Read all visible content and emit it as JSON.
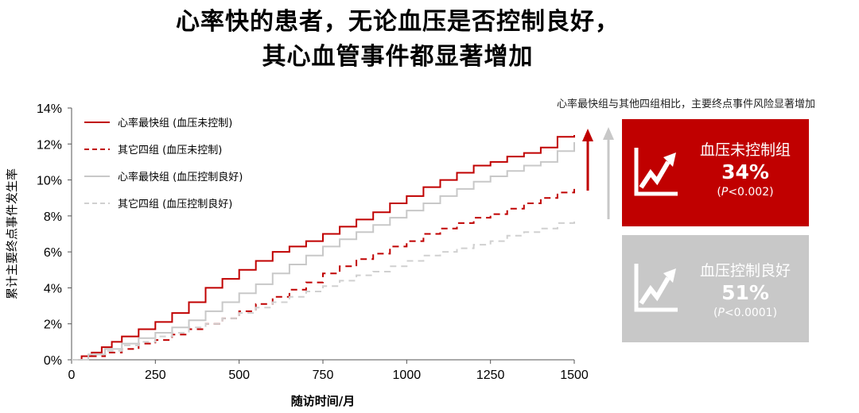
{
  "title": {
    "line1": "心率快的患者，无论血压是否控制良好，",
    "line2": "其心血管事件都显著增加"
  },
  "note": "心率最快组与其他四组相比，主要终点事件风险显著增加",
  "panels": [
    {
      "name": "血压未控制组",
      "percent": "34%",
      "p_prefix": "(",
      "p_italic": "P",
      "p_rest": "<0.002)",
      "color": "#c00000"
    },
    {
      "name": "血压控制良好",
      "percent": "51%",
      "p_prefix": "(",
      "p_italic": "P",
      "p_rest": "<0.0001)",
      "color": "#c8c8c8"
    }
  ],
  "colors": {
    "red": "#c00000",
    "gray": "#c8c8c8",
    "lightgray": "#d0d0d0"
  },
  "chart_data": {
    "type": "line",
    "title": "",
    "xlabel": "随访时间/月",
    "ylabel": "累计主要终点事件发生率",
    "xlim": [
      0,
      1500
    ],
    "ylim": [
      0,
      14
    ],
    "x_ticks": [
      0,
      250,
      500,
      750,
      1000,
      1250,
      1500
    ],
    "y_ticks": [
      0,
      2,
      4,
      6,
      8,
      10,
      12,
      14
    ],
    "y_tick_labels": [
      "0%",
      "2%",
      "4%",
      "6%",
      "8%",
      "10%",
      "12%",
      "14%"
    ],
    "legend_position": "top-left",
    "series": [
      {
        "name": "心率最快组 (血压未控制)",
        "color": "#c00000",
        "dash": "solid",
        "x": [
          0,
          30,
          60,
          90,
          120,
          150,
          200,
          250,
          300,
          350,
          400,
          450,
          500,
          550,
          600,
          650,
          700,
          750,
          800,
          850,
          900,
          950,
          1000,
          1050,
          1100,
          1150,
          1200,
          1250,
          1300,
          1350,
          1400,
          1450,
          1500
        ],
        "y": [
          0,
          0.2,
          0.4,
          0.7,
          1.0,
          1.3,
          1.7,
          2.1,
          2.6,
          3.2,
          4.0,
          4.5,
          5.0,
          5.5,
          6.0,
          6.3,
          6.6,
          7.0,
          7.4,
          7.8,
          8.2,
          8.7,
          9.1,
          9.6,
          10.0,
          10.4,
          10.8,
          11.0,
          11.3,
          11.5,
          11.8,
          12.4,
          12.5
        ]
      },
      {
        "name": "其它四组 (血压未控制)",
        "color": "#c00000",
        "dash": "dashed",
        "x": [
          0,
          50,
          100,
          150,
          200,
          250,
          300,
          350,
          400,
          450,
          500,
          550,
          600,
          650,
          700,
          750,
          800,
          850,
          900,
          950,
          1000,
          1050,
          1100,
          1150,
          1200,
          1250,
          1300,
          1350,
          1400,
          1450,
          1500
        ],
        "y": [
          0,
          0.2,
          0.4,
          0.6,
          0.9,
          1.1,
          1.4,
          1.7,
          2.0,
          2.3,
          2.7,
          3.1,
          3.5,
          3.9,
          4.3,
          4.8,
          5.2,
          5.6,
          5.9,
          6.3,
          6.6,
          7.0,
          7.3,
          7.6,
          7.9,
          8.1,
          8.4,
          8.7,
          9.0,
          9.3,
          9.5
        ]
      },
      {
        "name": "心率最快组 (血压控制良好)",
        "color": "#c8c8c8",
        "dash": "solid",
        "x": [
          0,
          50,
          100,
          150,
          200,
          250,
          300,
          350,
          400,
          450,
          500,
          550,
          600,
          650,
          700,
          750,
          800,
          850,
          900,
          950,
          1000,
          1050,
          1100,
          1150,
          1200,
          1250,
          1300,
          1350,
          1400,
          1450,
          1500
        ],
        "y": [
          0,
          0.3,
          0.6,
          0.9,
          1.2,
          1.5,
          1.8,
          2.2,
          2.7,
          3.2,
          3.7,
          4.2,
          4.8,
          5.3,
          5.8,
          6.3,
          6.7,
          7.1,
          7.5,
          7.9,
          8.3,
          8.7,
          9.1,
          9.5,
          9.9,
          10.2,
          10.5,
          10.8,
          11.0,
          11.6,
          12.1
        ]
      },
      {
        "name": "其它四组 (血压控制良好)",
        "color": "#d0d0d0",
        "dash": "dashed",
        "x": [
          0,
          50,
          100,
          150,
          200,
          250,
          300,
          350,
          400,
          450,
          500,
          550,
          600,
          650,
          700,
          750,
          800,
          850,
          900,
          950,
          1000,
          1050,
          1100,
          1150,
          1200,
          1250,
          1300,
          1350,
          1400,
          1450,
          1500
        ],
        "y": [
          0,
          0.3,
          0.5,
          0.8,
          1.0,
          1.3,
          1.5,
          1.8,
          2.0,
          2.3,
          2.6,
          2.9,
          3.2,
          3.5,
          3.8,
          4.1,
          4.4,
          4.7,
          4.9,
          5.2,
          5.5,
          5.8,
          6.0,
          6.2,
          6.4,
          6.6,
          6.9,
          7.1,
          7.3,
          7.6,
          7.9
        ]
      }
    ]
  }
}
